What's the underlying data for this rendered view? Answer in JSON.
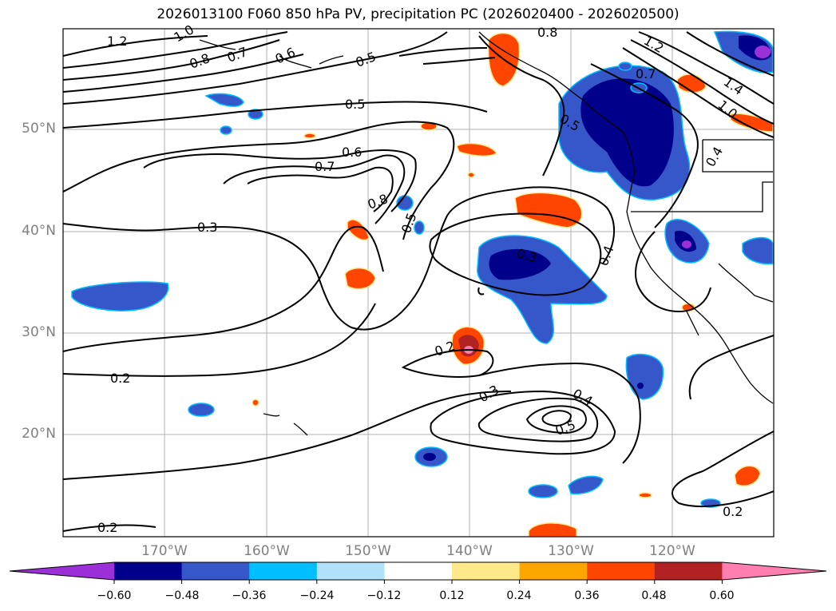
{
  "title": "2026013100 F060 850 hPa PV, precipitation PC (2026020400 - 2026020500)",
  "lat_labels": [
    "50°N",
    "40°N",
    "30°N",
    "20°N"
  ],
  "lon_labels": [
    "170°W",
    "160°W",
    "150°W",
    "140°W",
    "130°W",
    "120°W"
  ],
  "contour_labels": [
    "1.2",
    "1.0",
    "0.8",
    "0.7",
    "0.6",
    "0.5",
    "0.5",
    "0.6",
    "0.7",
    "0.8",
    "0.3",
    "0.5",
    "0.3",
    "0.4",
    "0.2",
    "0.2",
    "0.3",
    "0.4",
    "0.5",
    "0.2",
    "0.2",
    "0.8",
    "0.7",
    "1.2",
    "1.4",
    "1.0",
    "0.4",
    "0.5"
  ],
  "colorbar": {
    "ticks": [
      "−0.60",
      "−0.48",
      "−0.36",
      "−0.24",
      "−0.12",
      "0.12",
      "0.24",
      "0.36",
      "0.48",
      "0.60"
    ],
    "colors": [
      "#9b30d8",
      "#00008b",
      "#3657c9",
      "#00bfff",
      "#b0e0fa",
      "#ffffff",
      "#ffe88a",
      "#ffa500",
      "#ff4500",
      "#b22222",
      "#ff80b0"
    ]
  }
}
